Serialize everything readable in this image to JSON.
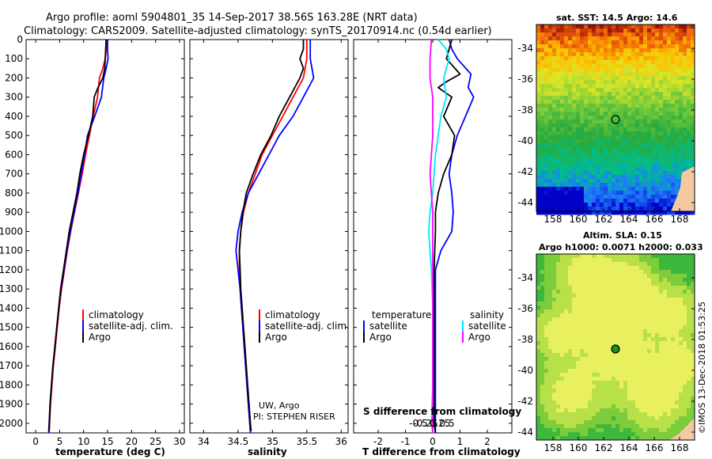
{
  "title": {
    "line1": "Argo profile: aoml 5904801_35 14-Sep-2017 38.56S 163.28E (NRT data)",
    "line2": "Climatology: CARS2009. Satellite-adjusted climatology: synTS_20170914.nc (0.54d earlier)"
  },
  "colors": {
    "climatology": "#ff0000",
    "satellite": "#0000ff",
    "argo": "#000000",
    "argo_s_diff": "#ff00ff",
    "sat_s_diff": "#00e5ff"
  },
  "chart_data": [
    {
      "type": "line",
      "xlabel": "temperature (deg C)",
      "ylabel": "",
      "xlim": [
        -2,
        31
      ],
      "ylim": [
        2050,
        0
      ],
      "xticks": [
        0,
        5,
        10,
        15,
        20,
        25,
        30
      ],
      "yticks": [
        0,
        100,
        200,
        300,
        400,
        500,
        600,
        700,
        800,
        900,
        1000,
        1100,
        1200,
        1300,
        1400,
        1500,
        1600,
        1700,
        1800,
        1900,
        2000
      ],
      "legend": [
        "climatology",
        "satellite-adj. clim.",
        "Argo"
      ],
      "legend_placement": "lower-right",
      "series": [
        {
          "name": "climatology",
          "color": "#ff0000",
          "points": [
            [
              14.9,
              0
            ],
            [
              14.7,
              50
            ],
            [
              14.5,
              100
            ],
            [
              14.0,
              150
            ],
            [
              13.3,
              200
            ],
            [
              12.9,
              300
            ],
            [
              12.0,
              400
            ],
            [
              11.2,
              500
            ],
            [
              10.4,
              600
            ],
            [
              9.7,
              700
            ],
            [
              8.9,
              800
            ],
            [
              8.1,
              900
            ],
            [
              7.3,
              1000
            ],
            [
              6.6,
              1100
            ],
            [
              6.0,
              1200
            ],
            [
              5.4,
              1300
            ],
            [
              4.9,
              1400
            ],
            [
              4.5,
              1500
            ],
            [
              4.1,
              1600
            ],
            [
              3.7,
              1700
            ],
            [
              3.4,
              1800
            ],
            [
              3.1,
              1900
            ],
            [
              2.9,
              2000
            ],
            [
              2.8,
              2050
            ]
          ]
        },
        {
          "name": "satellite-adj. clim.",
          "color": "#0000ff",
          "points": [
            [
              15.0,
              0
            ],
            [
              15.0,
              60
            ],
            [
              15.1,
              100
            ],
            [
              14.7,
              150
            ],
            [
              14.2,
              200
            ],
            [
              13.7,
              300
            ],
            [
              12.3,
              400
            ],
            [
              10.8,
              500
            ],
            [
              10.2,
              600
            ],
            [
              9.5,
              700
            ],
            [
              8.8,
              800
            ],
            [
              8.0,
              900
            ],
            [
              7.2,
              1000
            ],
            [
              6.5,
              1100
            ],
            [
              5.9,
              1200
            ],
            [
              5.3,
              1300
            ],
            [
              4.8,
              1400
            ],
            [
              4.4,
              1500
            ],
            [
              4.0,
              1600
            ],
            [
              3.6,
              1700
            ],
            [
              3.3,
              1800
            ],
            [
              3.0,
              1900
            ],
            [
              2.8,
              2000
            ],
            [
              2.7,
              2050
            ]
          ]
        },
        {
          "name": "Argo",
          "color": "#000000",
          "points": [
            [
              14.7,
              0
            ],
            [
              14.6,
              50
            ],
            [
              14.5,
              100
            ],
            [
              14.4,
              150
            ],
            [
              14.0,
              200
            ],
            [
              13.0,
              250
            ],
            [
              12.2,
              300
            ],
            [
              11.9,
              400
            ],
            [
              11.0,
              500
            ],
            [
              10.0,
              600
            ],
            [
              9.2,
              700
            ],
            [
              8.6,
              800
            ],
            [
              7.8,
              900
            ],
            [
              7.0,
              1000
            ],
            [
              6.4,
              1100
            ],
            [
              5.8,
              1200
            ],
            [
              5.2,
              1300
            ],
            [
              4.8,
              1400
            ],
            [
              4.4,
              1500
            ],
            [
              4.0,
              1600
            ],
            [
              3.6,
              1700
            ],
            [
              3.3,
              1800
            ],
            [
              3.0,
              1900
            ],
            [
              2.85,
              2000
            ],
            [
              2.8,
              2040
            ]
          ]
        }
      ]
    },
    {
      "type": "line",
      "xlabel": "salinity",
      "ylabel": "",
      "xlim": [
        33.8,
        36.1
      ],
      "ylim": [
        2050,
        0
      ],
      "xticks": [
        34,
        34.5,
        35,
        35.5,
        36
      ],
      "legend": [
        "climatology",
        "satellite-adj. clim.",
        "Argo"
      ],
      "legend_placement": "lower-right",
      "annotations": [
        "UW, Argo",
        "PI: STEPHEN RISER"
      ],
      "series": [
        {
          "name": "climatology",
          "color": "#ff0000",
          "points": [
            [
              35.5,
              0
            ],
            [
              35.5,
              100
            ],
            [
              35.45,
              200
            ],
            [
              35.3,
              300
            ],
            [
              35.15,
              400
            ],
            [
              35.0,
              500
            ],
            [
              34.85,
              600
            ],
            [
              34.75,
              700
            ],
            [
              34.65,
              800
            ],
            [
              34.58,
              900
            ],
            [
              34.54,
              1000
            ],
            [
              34.52,
              1100
            ],
            [
              34.52,
              1200
            ],
            [
              34.53,
              1300
            ],
            [
              34.55,
              1400
            ],
            [
              34.57,
              1500
            ],
            [
              34.59,
              1600
            ],
            [
              34.61,
              1700
            ],
            [
              34.63,
              1800
            ],
            [
              34.65,
              1900
            ],
            [
              34.67,
              2000
            ],
            [
              34.68,
              2050
            ]
          ]
        },
        {
          "name": "satellite-adj. clim.",
          "color": "#0000ff",
          "points": [
            [
              35.55,
              0
            ],
            [
              35.55,
              100
            ],
            [
              35.6,
              200
            ],
            [
              35.45,
              300
            ],
            [
              35.3,
              400
            ],
            [
              35.1,
              500
            ],
            [
              34.95,
              600
            ],
            [
              34.8,
              700
            ],
            [
              34.65,
              800
            ],
            [
              34.56,
              900
            ],
            [
              34.5,
              1000
            ],
            [
              34.47,
              1100
            ],
            [
              34.5,
              1200
            ],
            [
              34.53,
              1300
            ],
            [
              34.55,
              1400
            ],
            [
              34.57,
              1500
            ],
            [
              34.59,
              1600
            ],
            [
              34.61,
              1700
            ],
            [
              34.63,
              1800
            ],
            [
              34.65,
              1900
            ],
            [
              34.67,
              2000
            ],
            [
              34.68,
              2050
            ]
          ]
        },
        {
          "name": "Argo",
          "color": "#000000",
          "points": [
            [
              35.45,
              0
            ],
            [
              35.45,
              50
            ],
            [
              35.4,
              100
            ],
            [
              35.45,
              150
            ],
            [
              35.4,
              200
            ],
            [
              35.25,
              300
            ],
            [
              35.1,
              400
            ],
            [
              34.98,
              500
            ],
            [
              34.83,
              600
            ],
            [
              34.72,
              700
            ],
            [
              34.62,
              800
            ],
            [
              34.57,
              900
            ],
            [
              34.54,
              1000
            ],
            [
              34.52,
              1100
            ],
            [
              34.53,
              1200
            ],
            [
              34.54,
              1300
            ],
            [
              34.56,
              1400
            ],
            [
              34.58,
              1500
            ],
            [
              34.6,
              1600
            ],
            [
              34.62,
              1700
            ],
            [
              34.64,
              1800
            ],
            [
              34.66,
              1900
            ],
            [
              34.68,
              2000
            ],
            [
              34.69,
              2040
            ]
          ]
        }
      ]
    },
    {
      "type": "line",
      "xlabel": "T difference from climatology",
      "ylabel": "",
      "xlim": [
        -2.9,
        2.9
      ],
      "ylim": [
        2050,
        0
      ],
      "xticks": [
        -2,
        -1,
        0,
        1,
        2
      ],
      "secondary_xlabel": "S difference from climatology",
      "secondary_xticks": [
        "-0.5",
        "-0.25",
        "0",
        "0.25",
        "0.5"
      ],
      "legend_left": {
        "title": "temperature",
        "items": [
          "satellite",
          "Argo"
        ]
      },
      "legend_right": {
        "title": "salinity",
        "items": [
          "satellite",
          "Argo"
        ]
      },
      "series": [
        {
          "name": "satellite",
          "color": "#0000ff",
          "points": [
            [
              0.6,
              0
            ],
            [
              0.7,
              50
            ],
            [
              0.9,
              100
            ],
            [
              1.4,
              180
            ],
            [
              1.3,
              250
            ],
            [
              1.5,
              300
            ],
            [
              1.2,
              400
            ],
            [
              0.9,
              500
            ],
            [
              0.7,
              600
            ],
            [
              0.6,
              700
            ],
            [
              0.7,
              800
            ],
            [
              0.75,
              900
            ],
            [
              0.7,
              1000
            ],
            [
              0.3,
              1100
            ],
            [
              0.1,
              1200
            ],
            [
              0.1,
              1400
            ],
            [
              0.1,
              1600
            ],
            [
              0.1,
              1800
            ],
            [
              0.1,
              2000
            ],
            [
              0.1,
              2050
            ]
          ]
        },
        {
          "name": "Argo",
          "color": "#000000",
          "points": [
            [
              0.7,
              0
            ],
            [
              0.6,
              50
            ],
            [
              0.5,
              100
            ],
            [
              1.0,
              180
            ],
            [
              0.5,
              220
            ],
            [
              0.2,
              250
            ],
            [
              0.7,
              300
            ],
            [
              0.4,
              400
            ],
            [
              0.8,
              500
            ],
            [
              0.7,
              600
            ],
            [
              0.4,
              700
            ],
            [
              0.2,
              800
            ],
            [
              0.1,
              900
            ],
            [
              0.1,
              1000
            ],
            [
              0.05,
              1200
            ],
            [
              0.05,
              1400
            ],
            [
              0.05,
              1600
            ],
            [
              0.05,
              1800
            ],
            [
              0.05,
              2000
            ],
            [
              0.1,
              2050
            ]
          ]
        },
        {
          "name": "satellite",
          "color": "#00e5ff",
          "points": [
            [
              0.2,
              0
            ],
            [
              0.5,
              50
            ],
            [
              0.6,
              100
            ],
            [
              0.4,
              200
            ],
            [
              0.5,
              300
            ],
            [
              0.3,
              400
            ],
            [
              0.2,
              500
            ],
            [
              0.1,
              600
            ],
            [
              0.05,
              700
            ],
            [
              0.0,
              800
            ],
            [
              -0.1,
              900
            ],
            [
              -0.15,
              1000
            ],
            [
              -0.1,
              1100
            ],
            [
              -0.05,
              1200
            ],
            [
              0.0,
              1400
            ],
            [
              0.0,
              1600
            ],
            [
              0.0,
              1800
            ],
            [
              -0.05,
              2000
            ],
            [
              0.0,
              2050
            ]
          ]
        },
        {
          "name": "Argo",
          "color": "#ff00ff",
          "points": [
            [
              -0.05,
              0
            ],
            [
              -0.1,
              100
            ],
            [
              -0.1,
              200
            ],
            [
              -0.05,
              250
            ],
            [
              0.0,
              300
            ],
            [
              0.0,
              400
            ],
            [
              0.0,
              500
            ],
            [
              -0.05,
              600
            ],
            [
              -0.1,
              700
            ],
            [
              -0.05,
              800
            ],
            [
              0.0,
              900
            ],
            [
              0.0,
              1000
            ],
            [
              0.0,
              1200
            ],
            [
              0.0,
              1400
            ],
            [
              0.0,
              1600
            ],
            [
              0.0,
              1800
            ],
            [
              0.0,
              2000
            ],
            [
              0.0,
              2050
            ]
          ]
        }
      ]
    },
    {
      "type": "heatmap",
      "title": "sat. SST: 14.5 Argo: 14.6",
      "xticks": [
        "158",
        "160",
        "162",
        "164",
        "166",
        "168"
      ],
      "yticks": [
        "-34",
        "-36",
        "-38",
        "-40",
        "-42",
        "-44"
      ],
      "marker": {
        "lon": 163.28,
        "lat": -38.56
      }
    },
    {
      "type": "heatmap",
      "title_line1": "Altim. SLA: 0.15",
      "title_line2": "Argo h1000: 0.0071 h2000: 0.033",
      "xticks": [
        "158",
        "160",
        "162",
        "164",
        "166",
        "168"
      ],
      "yticks": [
        "-34",
        "-36",
        "-38",
        "-40",
        "-42",
        "-44"
      ],
      "marker": {
        "lon": 163.28,
        "lat": -38.56
      }
    }
  ],
  "panels": {
    "temp": {
      "legend": {
        "clim": "climatology",
        "sat": "satellite-adj. clim.",
        "argo": "Argo"
      },
      "xlabel": "temperature (deg C)"
    },
    "sal": {
      "legend": {
        "clim": "climatology",
        "sat": "satellite-adj. clim.",
        "argo": "Argo"
      },
      "xlabel": "salinity",
      "note1": "UW, Argo",
      "note2": "PI: STEPHEN RISER"
    },
    "diff": {
      "lt": "temperature",
      "ls": "satellite",
      "la": "Argo",
      "rt": "salinity",
      "rs": "satellite",
      "ra": "Argo",
      "stitle": "S difference from climatology",
      "xlabel": "T difference from climatology"
    }
  },
  "maps": {
    "sst": {
      "title": "sat. SST: 14.5 Argo: 14.6"
    },
    "sla": {
      "title1": "Altim. SLA: 0.15",
      "title2": "Argo h1000: 0.0071 h2000: 0.033"
    }
  },
  "credit": "©IMOS 13-Dec-2018 01:53:25"
}
